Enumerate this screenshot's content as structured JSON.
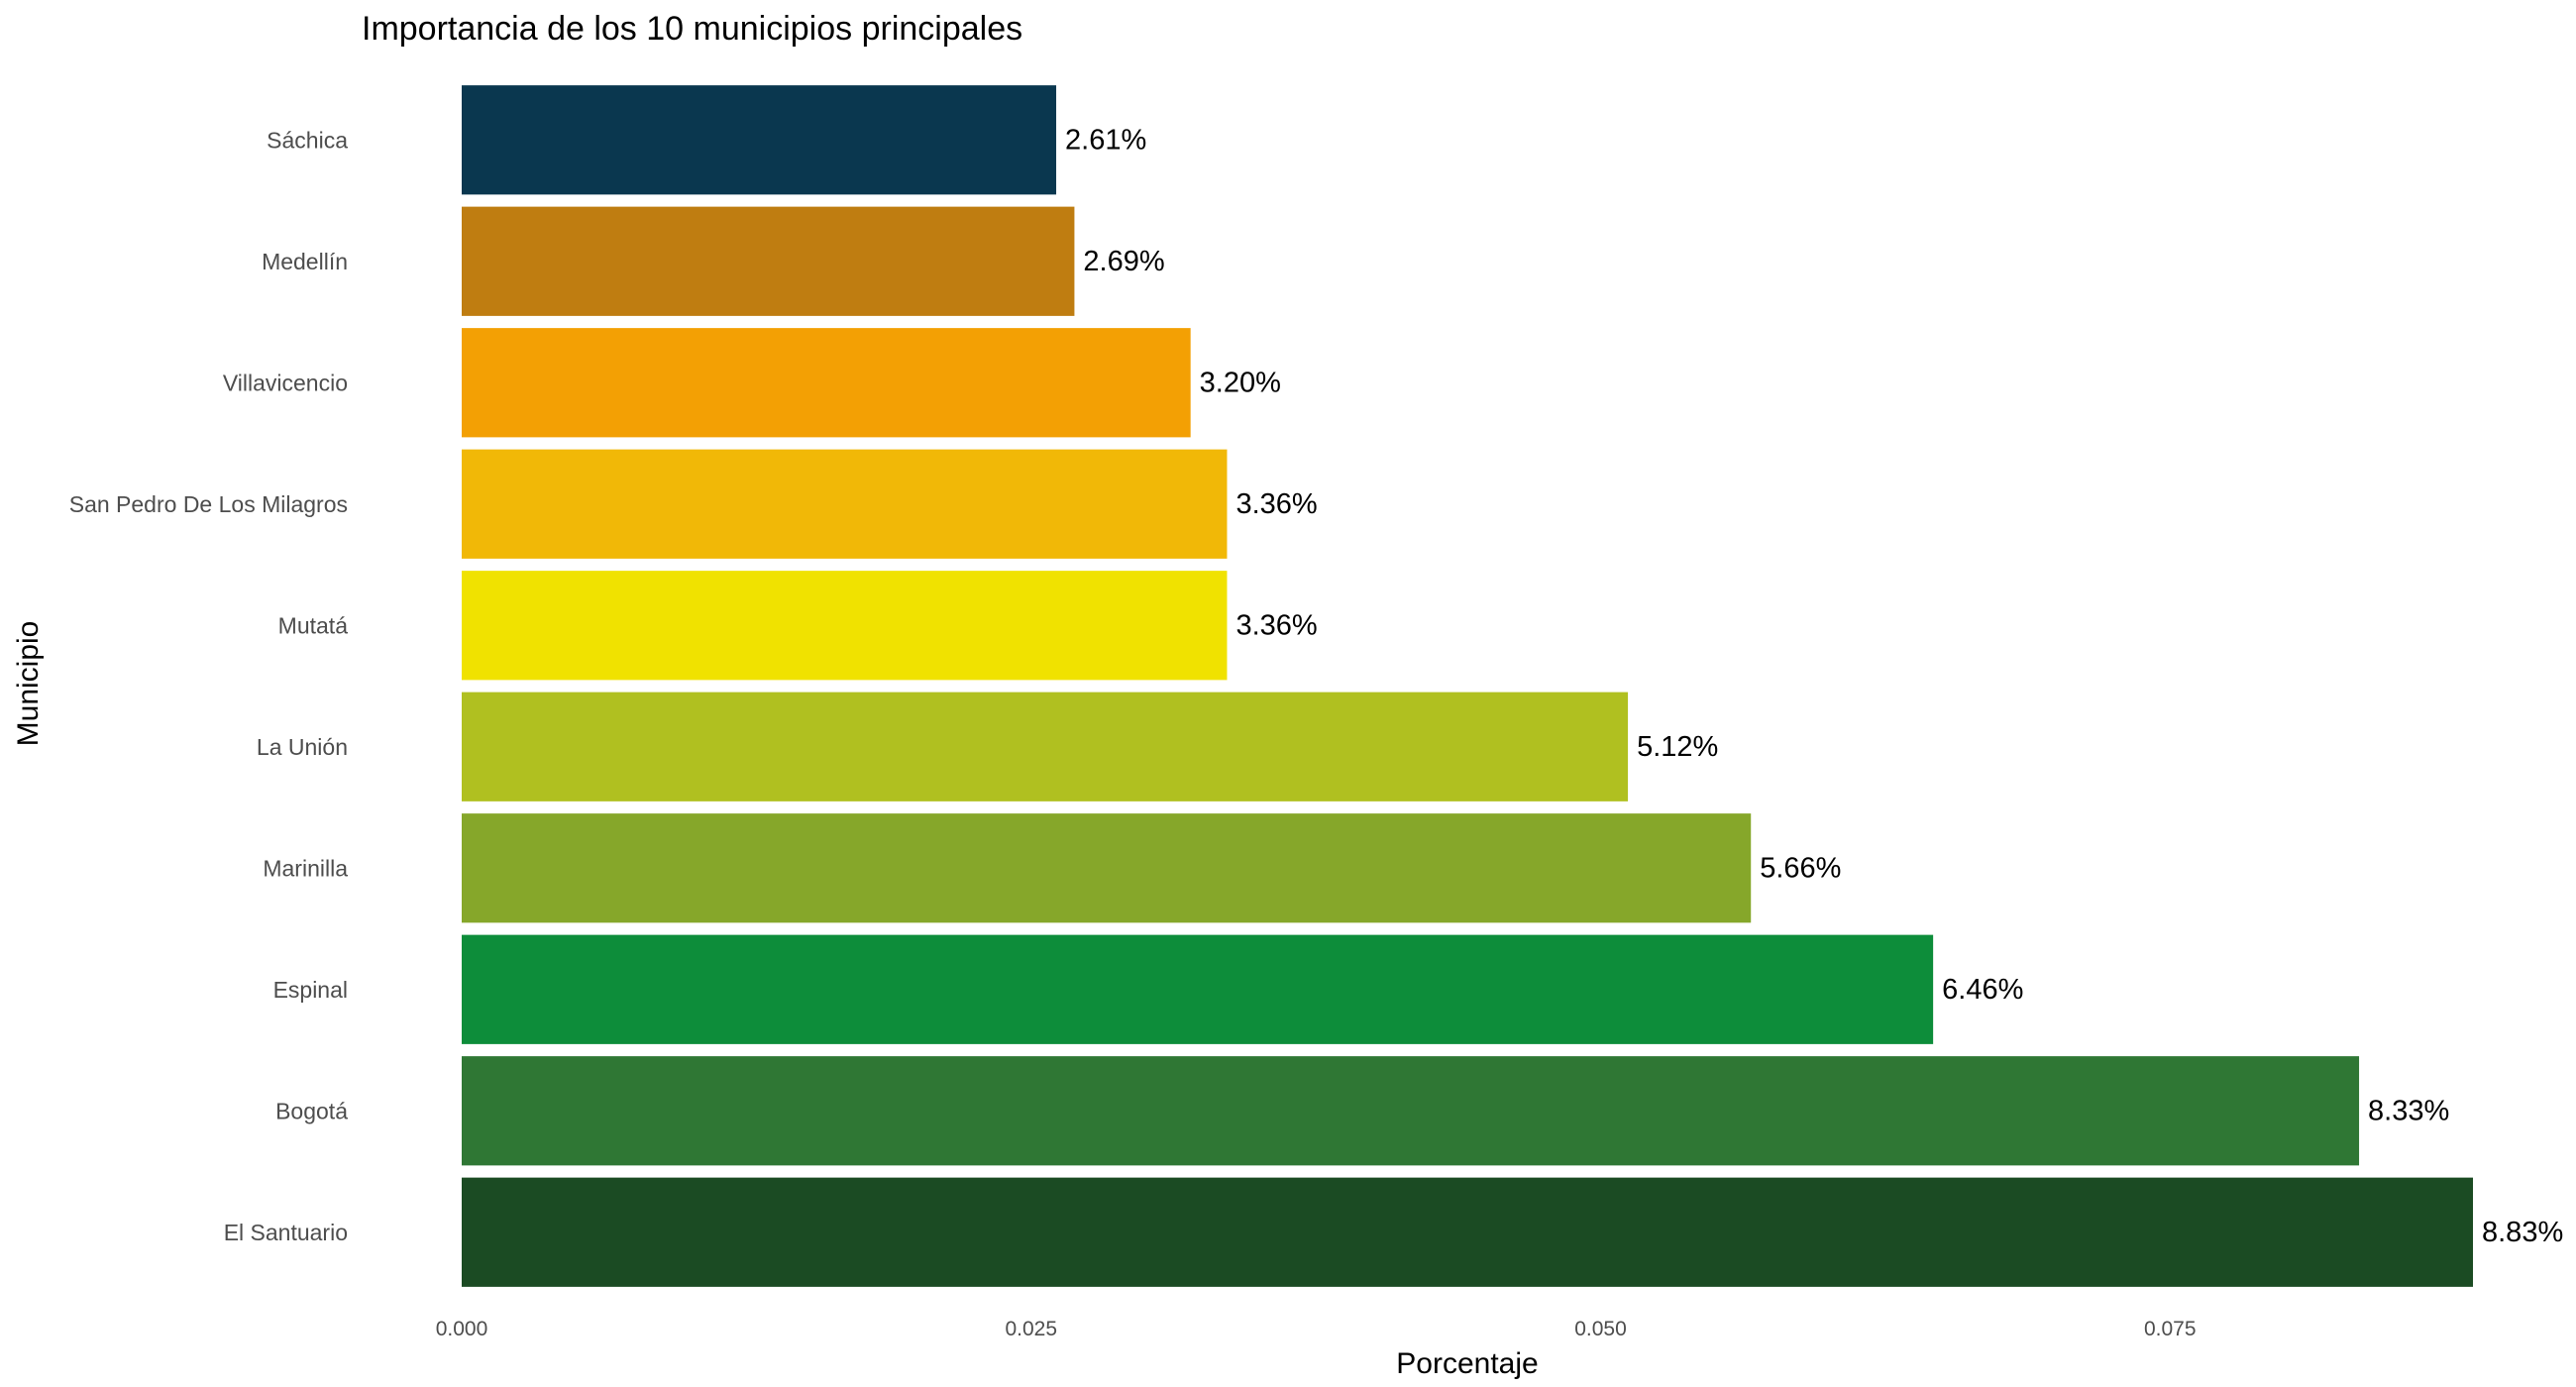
{
  "chart_data": {
    "type": "bar",
    "orientation": "horizontal",
    "title": "Importancia de los 10 municipios principales",
    "xlabel": "Porcentaje",
    "ylabel": "Municipio",
    "xlim": [
      0,
      0.0883
    ],
    "grid": false,
    "legend": "none",
    "x_ticks": [
      {
        "value": 0.0,
        "label": "0.000"
      },
      {
        "value": 0.025,
        "label": "0.025"
      },
      {
        "value": 0.05,
        "label": "0.050"
      },
      {
        "value": 0.075,
        "label": "0.075"
      }
    ],
    "bars": [
      {
        "category": "Sáchica",
        "value": 0.0261,
        "label": "2.61%",
        "color": "#0a374f"
      },
      {
        "category": "Medellín",
        "value": 0.0269,
        "label": "2.69%",
        "color": "#bf7d11"
      },
      {
        "category": "Villavicencio",
        "value": 0.032,
        "label": "3.20%",
        "color": "#f3a004"
      },
      {
        "category": "San Pedro De Los Milagros",
        "value": 0.0336,
        "label": "3.36%",
        "color": "#f1b807"
      },
      {
        "category": "Mutatá",
        "value": 0.0336,
        "label": "3.36%",
        "color": "#f0e200"
      },
      {
        "category": "La Unión",
        "value": 0.0512,
        "label": "5.12%",
        "color": "#b0c020"
      },
      {
        "category": "Marinilla",
        "value": 0.0566,
        "label": "5.66%",
        "color": "#86a72a"
      },
      {
        "category": "Espinal",
        "value": 0.0646,
        "label": "6.46%",
        "color": "#0d8d3a"
      },
      {
        "category": "Bogotá",
        "value": 0.0833,
        "label": "8.33%",
        "color": "#2f7734"
      },
      {
        "category": "El Santuario",
        "value": 0.0883,
        "label": "8.83%",
        "color": "#1b4b23"
      }
    ]
  }
}
